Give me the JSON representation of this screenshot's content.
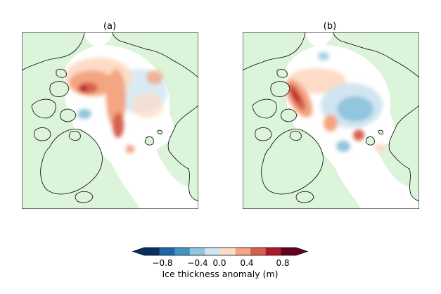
{
  "panels": [
    {
      "id": "a",
      "title": "(a)"
    },
    {
      "id": "b",
      "title": "(b)"
    }
  ],
  "colorbar": {
    "title": "Ice thickness anomaly (m)",
    "tick_labels": [
      "−0.8",
      "−0.4",
      "0.0",
      "0.4",
      "0.8"
    ],
    "bins": [
      -1.0,
      -0.8,
      -0.6,
      -0.4,
      -0.2,
      0.0,
      0.2,
      0.4,
      0.6,
      0.8,
      1.0
    ],
    "colors": [
      "#053061",
      "#2166ac",
      "#4393c3",
      "#92c5de",
      "#d1e5f0",
      "#fddbc7",
      "#f4a582",
      "#d6604d",
      "#b2182b",
      "#67001f"
    ],
    "extend": "both"
  },
  "map_colors": {
    "land": "#dcf5da",
    "ocean": "#ffffff",
    "coast": "#000000"
  }
}
